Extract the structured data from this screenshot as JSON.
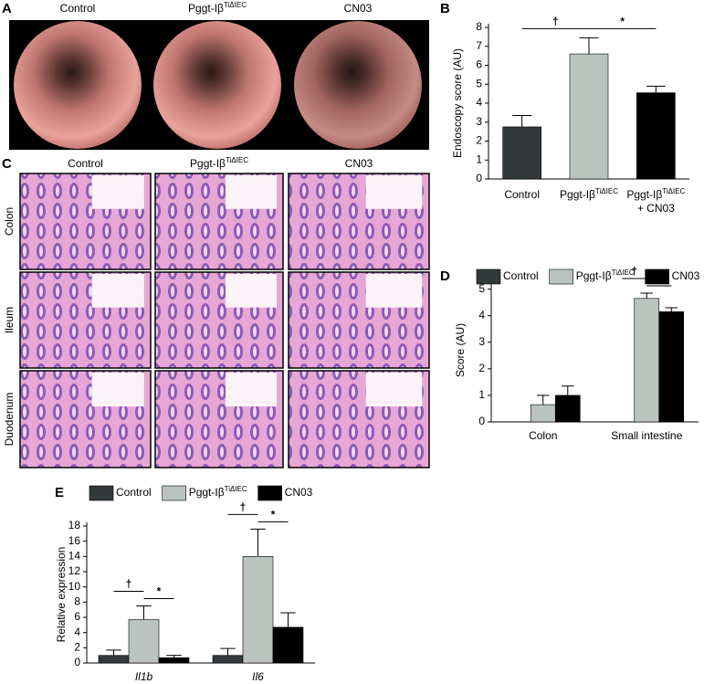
{
  "panels": {
    "A": {
      "label": "A",
      "titles": [
        "Control",
        "Pggt-Iβ",
        "CN03"
      ],
      "title_sups": [
        null,
        "TiΔIEC",
        null
      ]
    },
    "C": {
      "label": "C",
      "titles": [
        "Control",
        "Pggt-Iβ",
        "CN03"
      ],
      "title_sups": [
        null,
        "TiΔIEC",
        null
      ],
      "rows": [
        "Colon",
        "Ileum",
        "Duodenum"
      ]
    }
  },
  "chart_data": [
    {
      "type": "bar",
      "label": "B",
      "ylabel": "Endoscopy score (AU)",
      "categories": [
        "Control",
        "Pggt-Iβ",
        "Pggt-Iβ"
      ],
      "category_sups": [
        null,
        "TiΔIEC",
        "TiΔIEC"
      ],
      "category_notes": [
        null,
        null,
        "+ CN03"
      ],
      "values": [
        2.75,
        6.6,
        4.55
      ],
      "errors": [
        0.6,
        0.85,
        0.35
      ],
      "colors": [
        "#33393b",
        "#b9c4bf",
        "#000000"
      ],
      "ylim": [
        0,
        8
      ],
      "yticks": [
        0,
        1,
        2,
        3,
        4,
        5,
        6,
        7,
        8
      ],
      "annotations": [
        {
          "text": "†",
          "from": 0,
          "to": 1
        },
        {
          "text": "*",
          "from": 1,
          "to": 2
        }
      ]
    },
    {
      "type": "grouped_bar",
      "label": "D",
      "ylabel": "Score (AU)",
      "categories": [
        "Colon",
        "Small intestine"
      ],
      "series": [
        {
          "name": "Control",
          "color": "#33393b",
          "values": [
            null,
            null
          ],
          "errors": [
            null,
            null
          ]
        },
        {
          "name": "Pggt-Iβ",
          "name_sup": "TiΔIEC",
          "color": "#b9c4bf",
          "values": [
            0.65,
            4.65
          ],
          "errors": [
            0.35,
            0.2
          ]
        },
        {
          "name": "CN03",
          "color": "#000000",
          "values": [
            1.0,
            4.15
          ],
          "errors": [
            0.35,
            0.15
          ]
        }
      ],
      "ylim": [
        0,
        5.4
      ],
      "yticks": [
        0,
        1,
        2,
        3,
        4,
        5
      ],
      "annotations": [
        {
          "text": "†",
          "category": 1,
          "from": 0,
          "to": 1
        },
        {
          "text": "*",
          "category": 1,
          "from": 1,
          "to": 2
        }
      ]
    },
    {
      "type": "grouped_bar",
      "label": "E",
      "ylabel": "Relative expression",
      "italic_categories": true,
      "categories": [
        "Il1b",
        "Il6"
      ],
      "series": [
        {
          "name": "Control",
          "color": "#33393b",
          "values": [
            1.0,
            1.0
          ],
          "errors": [
            0.7,
            0.9
          ]
        },
        {
          "name": "Pggt-Iβ",
          "name_sup": "TiΔIEC",
          "color": "#b9c4bf",
          "values": [
            5.7,
            14.0
          ],
          "errors": [
            1.8,
            3.6
          ]
        },
        {
          "name": "CN03",
          "color": "#000000",
          "values": [
            0.7,
            4.7
          ],
          "errors": [
            0.3,
            1.9
          ]
        }
      ],
      "ylim": [
        0,
        18
      ],
      "yticks": [
        0,
        2,
        4,
        6,
        8,
        10,
        12,
        14,
        16,
        18
      ],
      "annotations": [
        {
          "text": "†",
          "category": 0,
          "from": 0,
          "to": 1
        },
        {
          "text": "*",
          "category": 0,
          "from": 1,
          "to": 2
        },
        {
          "text": "†",
          "category": 1,
          "from": 0,
          "to": 1
        },
        {
          "text": "*",
          "category": 1,
          "from": 1,
          "to": 2
        }
      ]
    }
  ]
}
